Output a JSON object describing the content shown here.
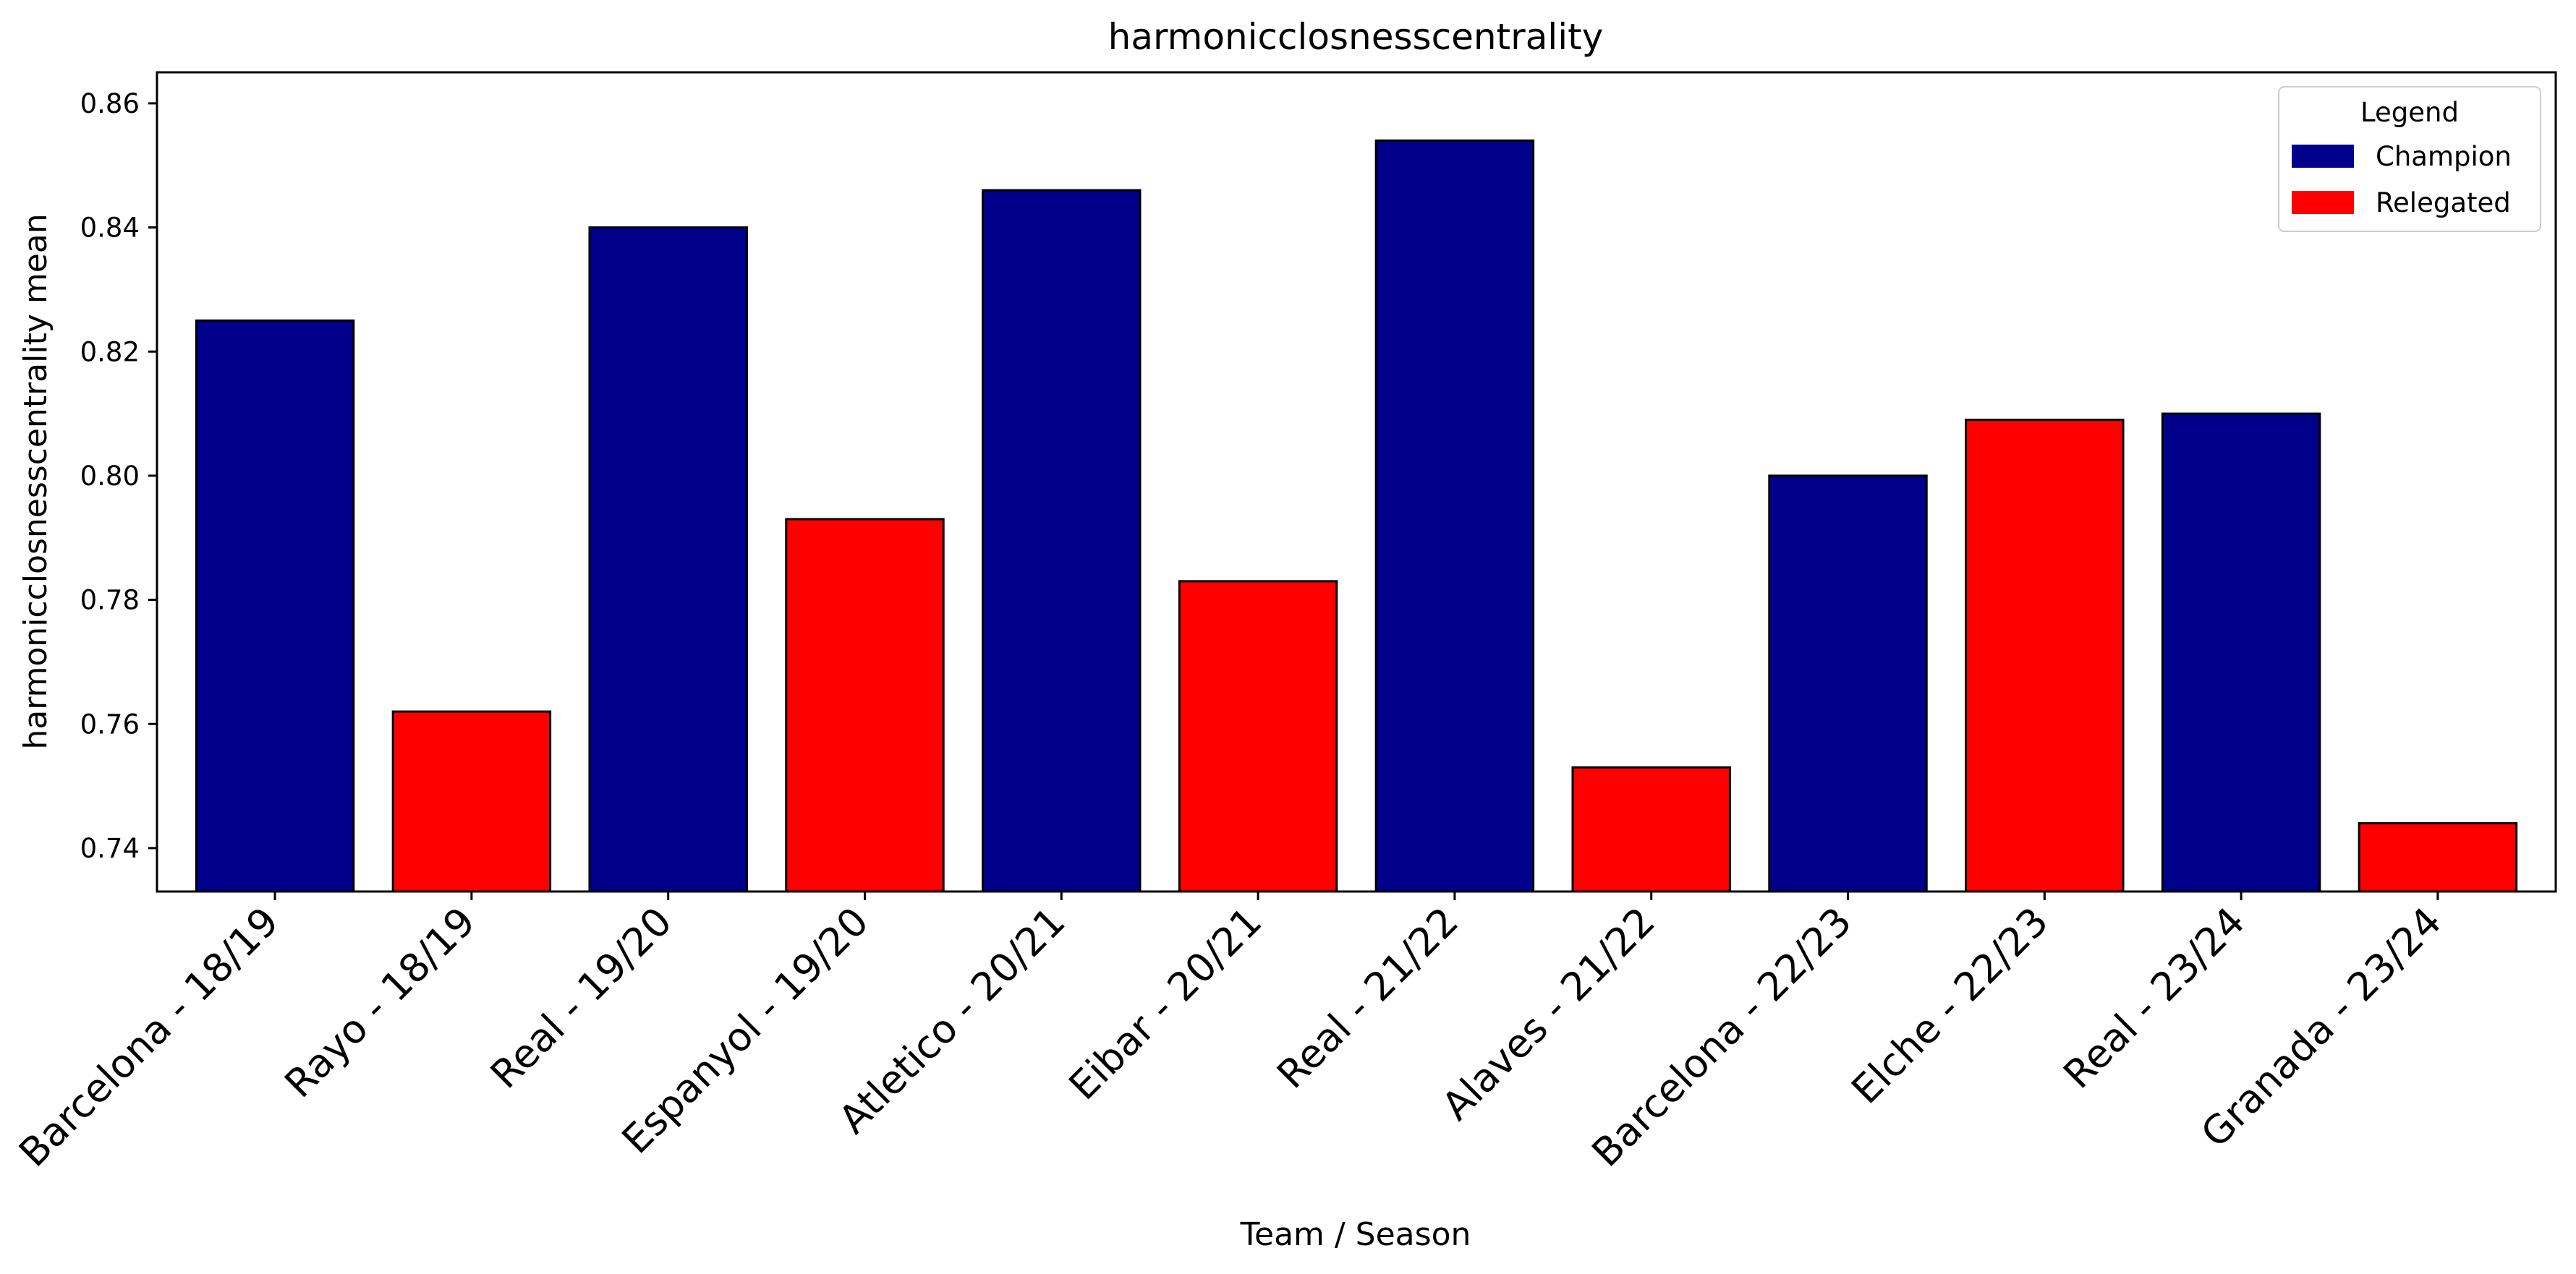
{
  "chart_data": {
    "type": "bar",
    "title": "harmonicclosnesscentrality",
    "xlabel": "Team / Season",
    "ylabel": "harmonicclosnesscentrality mean",
    "categories": [
      "Barcelona - 18/19",
      "Rayo - 18/19",
      "Real - 19/20",
      "Espanyol - 19/20",
      "Atletico - 20/21",
      "Eibar - 20/21",
      "Real - 21/22",
      "Alaves - 21/22",
      "Barcelona - 22/23",
      "Elche - 22/23",
      "Real - 23/24",
      "Granada - 23/24"
    ],
    "values": [
      0.825,
      0.762,
      0.84,
      0.793,
      0.846,
      0.783,
      0.854,
      0.753,
      0.8,
      0.809,
      0.81,
      0.744
    ],
    "groups": [
      "Champion",
      "Relegated",
      "Champion",
      "Relegated",
      "Champion",
      "Relegated",
      "Champion",
      "Relegated",
      "Champion",
      "Relegated",
      "Champion",
      "Relegated"
    ],
    "ylim": [
      0.733,
      0.865
    ],
    "yticks": [
      0.74,
      0.76,
      0.78,
      0.8,
      0.82,
      0.84,
      0.86
    ],
    "ytick_labels": [
      "0.74",
      "0.76",
      "0.78",
      "0.80",
      "0.82",
      "0.84",
      "0.86"
    ],
    "grid": false,
    "legend": {
      "title": "Legend",
      "position": "top-right",
      "items": [
        {
          "name": "Champion",
          "color": "#00008b"
        },
        {
          "name": "Relegated",
          "color": "#ff0000"
        }
      ]
    }
  }
}
